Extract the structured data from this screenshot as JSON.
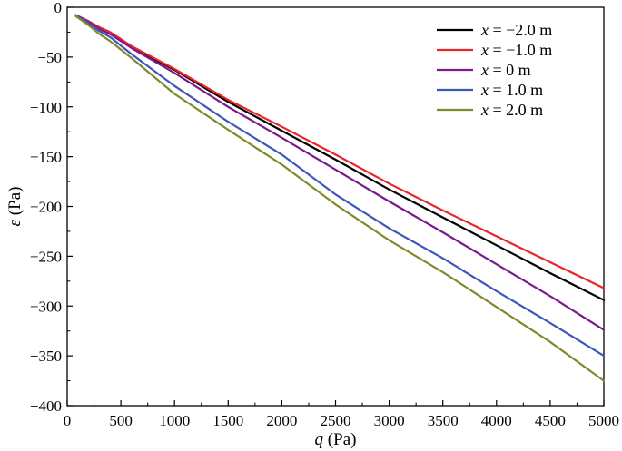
{
  "chart_data": {
    "type": "line",
    "xlabel_var": "q",
    "xlabel_unit": "(Pa)",
    "ylabel_var": "ε",
    "ylabel_unit": "(Pa)",
    "xlim": [
      0,
      5000
    ],
    "ylim": [
      -400,
      0
    ],
    "xticks": [
      0,
      500,
      1000,
      1500,
      2000,
      2500,
      3000,
      3500,
      4000,
      4500,
      5000
    ],
    "yticks": [
      0,
      -50,
      -100,
      -150,
      -200,
      -250,
      -300,
      -350,
      -400
    ],
    "ytick_labels": [
      "0",
      "−50",
      "−100",
      "−150",
      "−200",
      "−250",
      "−300",
      "−350",
      "−400"
    ],
    "grid": false,
    "legend_position": "top-right",
    "series": [
      {
        "var": "x",
        "value_text": " = −2.0 m",
        "color": "#000000",
        "x": [
          80,
          200,
          300,
          400,
          600,
          1000,
          1500,
          2000,
          2500,
          3000,
          3500,
          4000,
          4500,
          5000
        ],
        "y": [
          -8,
          -14,
          -21,
          -26,
          -40,
          -63,
          -95,
          -124,
          -153,
          -183,
          -211,
          -239,
          -267,
          -294
        ]
      },
      {
        "var": "x",
        "value_text": " = −1.0 m",
        "color": "#e8262a",
        "x": [
          80,
          200,
          300,
          400,
          600,
          1000,
          1500,
          2000,
          2500,
          3000,
          3500,
          4000,
          4500,
          5000
        ],
        "y": [
          -8,
          -14,
          -20,
          -25,
          -39,
          -62,
          -93,
          -120,
          -148,
          -177,
          -204,
          -230,
          -256,
          -282
        ]
      },
      {
        "var": "x",
        "value_text": " = 0 m",
        "color": "#7a1a8c",
        "x": [
          80,
          200,
          300,
          400,
          600,
          1000,
          1500,
          2000,
          2500,
          3000,
          3500,
          4000,
          4500,
          5000
        ],
        "y": [
          -8,
          -15,
          -22,
          -27,
          -41,
          -66,
          -100,
          -131,
          -163,
          -195,
          -226,
          -258,
          -290,
          -324
        ]
      },
      {
        "var": "x",
        "value_text": " = 1.0 m",
        "color": "#3d57b8",
        "x": [
          80,
          200,
          300,
          400,
          600,
          1000,
          1500,
          2000,
          2500,
          3000,
          3500,
          4000,
          4500,
          5000
        ],
        "y": [
          -8,
          -16,
          -24,
          -30,
          -47,
          -79,
          -115,
          -148,
          -188,
          -222,
          -252,
          -285,
          -317,
          -350
        ]
      },
      {
        "var": "x",
        "value_text": " = 2.0 m",
        "color": "#808a2c",
        "x": [
          80,
          200,
          300,
          400,
          600,
          1000,
          1500,
          2000,
          2500,
          3000,
          3500,
          4000,
          4500,
          5000
        ],
        "y": [
          -9,
          -18,
          -27,
          -34,
          -51,
          -87,
          -123,
          -158,
          -198,
          -234,
          -266,
          -301,
          -336,
          -375
        ]
      }
    ]
  }
}
